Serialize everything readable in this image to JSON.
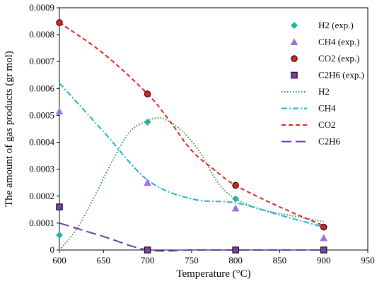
{
  "chart_data": {
    "type": "scatter",
    "xlabel": "Temperature (°C)",
    "ylabel": "The amount of gas products (gr mol)",
    "xlim": [
      600,
      950
    ],
    "ylim": [
      0,
      0.0009
    ],
    "x_ticks": [
      "600",
      "650",
      "700",
      "750",
      "800",
      "850",
      "900",
      "950"
    ],
    "y_ticks": [
      "0",
      "0.0001",
      "0.0002",
      "0.0003",
      "0.0004",
      "0.0005",
      "0.0006",
      "0.0007",
      "0.0008",
      "0.0009"
    ],
    "legend_position": "top-right",
    "grid": false,
    "experimental": [
      {
        "name": "H2 (exp.)",
        "marker": "diamond",
        "color": "#2ab0a0",
        "points": [
          [
            600,
            5.5e-05
          ],
          [
            700,
            0.000475
          ],
          [
            800,
            0.00019
          ],
          [
            900,
            8.5e-05
          ]
        ]
      },
      {
        "name": "CH4 (exp.)",
        "marker": "triangle",
        "color": "#a070e0",
        "points": [
          [
            600,
            0.000515
          ],
          [
            700,
            0.00025
          ],
          [
            800,
            0.000155
          ],
          [
            900,
            4.5e-05
          ]
        ]
      },
      {
        "name": "CO2 (exp.)",
        "marker": "circle",
        "color": "#e02020",
        "points": [
          [
            600,
            0.000845
          ],
          [
            700,
            0.00058
          ],
          [
            800,
            0.00024
          ],
          [
            900,
            8.5e-05
          ]
        ]
      },
      {
        "name": "C2H6 (exp.)",
        "marker": "square",
        "color": "#7a3fa0",
        "points": [
          [
            600,
            0.00016
          ],
          [
            700,
            0.0
          ],
          [
            800,
            0.0
          ],
          [
            900,
            0.0
          ]
        ]
      }
    ],
    "model": [
      {
        "name": "H2",
        "dash": "dotted",
        "color": "#2a9a3a",
        "points": [
          [
            600,
            0.0
          ],
          [
            620,
            8e-05
          ],
          [
            640,
            0.0002
          ],
          [
            660,
            0.00033
          ],
          [
            680,
            0.00044
          ],
          [
            700,
            0.00048
          ],
          [
            710,
            0.00049
          ],
          [
            720,
            0.000485
          ],
          [
            740,
            0.00044
          ],
          [
            760,
            0.00036
          ],
          [
            780,
            0.00025
          ],
          [
            800,
            0.00019
          ],
          [
            830,
            0.00015
          ],
          [
            860,
            0.00013
          ],
          [
            900,
            0.000105
          ]
        ]
      },
      {
        "name": "CH4",
        "dash": "dashdot",
        "color": "#1fb0d8",
        "points": [
          [
            600,
            0.00062
          ],
          [
            650,
            0.00044
          ],
          [
            700,
            0.00026
          ],
          [
            750,
            0.00019
          ],
          [
            800,
            0.000175
          ],
          [
            850,
            0.00013
          ],
          [
            900,
            8.5e-05
          ]
        ]
      },
      {
        "name": "CO2",
        "dash": "dashed",
        "color": "#e02020",
        "points": [
          [
            600,
            0.000845
          ],
          [
            650,
            0.00073
          ],
          [
            700,
            0.00058
          ],
          [
            725,
            0.00048
          ],
          [
            750,
            0.00037
          ],
          [
            775,
            0.0003
          ],
          [
            800,
            0.00024
          ],
          [
            850,
            0.00016
          ],
          [
            900,
            9e-05
          ]
        ]
      },
      {
        "name": "C2H6",
        "dash": "longdash",
        "color": "#6a3aa0",
        "points": [
          [
            600,
            0.0001
          ],
          [
            650,
            5e-05
          ],
          [
            700,
            0.0
          ],
          [
            750,
            0.0
          ],
          [
            800,
            0.0
          ],
          [
            850,
            0.0
          ],
          [
            900,
            0.0
          ]
        ]
      }
    ]
  }
}
